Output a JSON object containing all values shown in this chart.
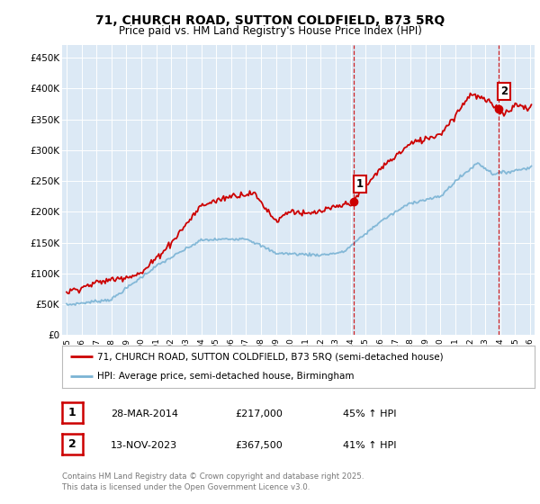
{
  "title_line1": "71, CHURCH ROAD, SUTTON COLDFIELD, B73 5RQ",
  "title_line2": "Price paid vs. HM Land Registry's House Price Index (HPI)",
  "background_color": "#ffffff",
  "plot_bg_color": "#dce9f5",
  "grid_color": "#ffffff",
  "red_color": "#cc0000",
  "blue_color": "#7ab3d4",
  "vline_color": "#cc0000",
  "ylim": [
    0,
    470000
  ],
  "yticks": [
    0,
    50000,
    100000,
    150000,
    200000,
    250000,
    300000,
    350000,
    400000,
    450000
  ],
  "ytick_labels": [
    "£0",
    "£50K",
    "£100K",
    "£150K",
    "£200K",
    "£250K",
    "£300K",
    "£350K",
    "£400K",
    "£450K"
  ],
  "xlim_start": 1994.7,
  "xlim_end": 2026.3,
  "xticks": [
    1995,
    1996,
    1997,
    1998,
    1999,
    2000,
    2001,
    2002,
    2003,
    2004,
    2005,
    2006,
    2007,
    2008,
    2009,
    2010,
    2011,
    2012,
    2013,
    2014,
    2015,
    2016,
    2017,
    2018,
    2019,
    2020,
    2021,
    2022,
    2023,
    2024,
    2025,
    2026
  ],
  "sale1_x": 2014.22,
  "sale1_y": 217000,
  "sale1_label": "1",
  "sale2_x": 2023.87,
  "sale2_y": 367500,
  "sale2_label": "2",
  "legend_line1": "71, CHURCH ROAD, SUTTON COLDFIELD, B73 5RQ (semi-detached house)",
  "legend_line2": "HPI: Average price, semi-detached house, Birmingham",
  "info1_num": "1",
  "info1_date": "28-MAR-2014",
  "info1_price": "£217,000",
  "info1_hpi": "45% ↑ HPI",
  "info2_num": "2",
  "info2_date": "13-NOV-2023",
  "info2_price": "£367,500",
  "info2_hpi": "41% ↑ HPI",
  "footnote": "Contains HM Land Registry data © Crown copyright and database right 2025.\nThis data is licensed under the Open Government Licence v3.0."
}
